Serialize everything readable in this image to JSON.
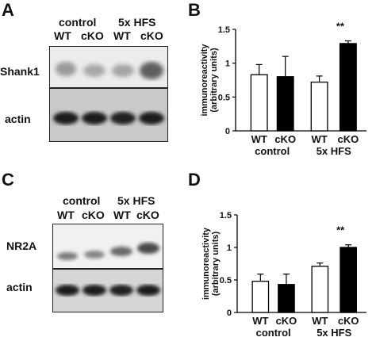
{
  "panels": {
    "a": {
      "letter": "A",
      "group1": "control",
      "group2": "5x HFS",
      "lanes": [
        "WT",
        "cKO",
        "WT",
        "cKO"
      ],
      "row1_label": "Shank1",
      "row2_label": "actin"
    },
    "c": {
      "letter": "C",
      "group1": "control",
      "group2": "5x HFS",
      "lanes": [
        "WT",
        "cKO",
        "WT",
        "cKO"
      ],
      "row1_label": "NR2A",
      "row2_label": "actin"
    },
    "b": {
      "letter": "B"
    },
    "d": {
      "letter": "D"
    }
  },
  "chart_data": [
    {
      "id": "B",
      "type": "bar",
      "ylabel": "immunoreactivity (arbitrary units)",
      "ylim": [
        0,
        1.5
      ],
      "yticks": [
        "0",
        "0.5",
        "1",
        "1.5"
      ],
      "categories": [
        "WT",
        "cKO",
        "WT",
        "cKO"
      ],
      "groups": [
        "control",
        "5x HFS"
      ],
      "values": [
        0.83,
        0.8,
        0.72,
        1.29
      ],
      "errors": [
        0.15,
        0.3,
        0.09,
        0.04
      ],
      "fills": [
        "#ffffff",
        "#000000",
        "#ffffff",
        "#000000"
      ],
      "annotation": "**",
      "annotation_bar": 3
    },
    {
      "id": "D",
      "type": "bar",
      "ylabel": "immunoreactivity (arbitrary units)",
      "ylim": [
        0,
        1.5
      ],
      "yticks": [
        "0",
        "0.5",
        "1",
        "1.5"
      ],
      "categories": [
        "WT",
        "cKO",
        "WT",
        "cKO"
      ],
      "groups": [
        "control",
        "5x HFS"
      ],
      "values": [
        0.48,
        0.43,
        0.71,
        1.0
      ],
      "errors": [
        0.11,
        0.16,
        0.05,
        0.04
      ],
      "fills": [
        "#ffffff",
        "#000000",
        "#ffffff",
        "#000000"
      ],
      "annotation": "**",
      "annotation_bar": 3
    }
  ]
}
